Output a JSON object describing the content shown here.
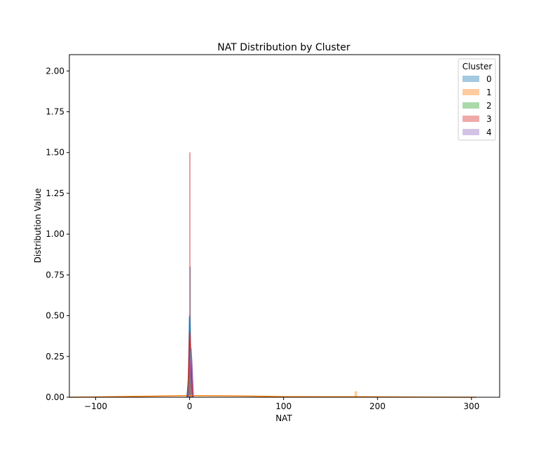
{
  "chart_data": {
    "type": "histogram-kde",
    "title": "NAT Distribution by Cluster",
    "xlabel": "NAT",
    "ylabel": "Distribution Value",
    "xlim": [
      -128,
      330
    ],
    "ylim": [
      0,
      2.1
    ],
    "xticks": [
      -100,
      0,
      100,
      200,
      300
    ],
    "xtick_labels": [
      "−100",
      "0",
      "100",
      "200",
      "300"
    ],
    "yticks": [
      0,
      0.25,
      0.5,
      0.75,
      1.0,
      1.25,
      1.5,
      1.75,
      2.0
    ],
    "ytick_labels": [
      "0.00",
      "0.25",
      "0.50",
      "0.75",
      "1.00",
      "1.25",
      "1.50",
      "1.75",
      "2.00"
    ],
    "grid": false,
    "legend": {
      "title": "Cluster",
      "position": "top-right"
    },
    "series": [
      {
        "name": "0",
        "color": "#1f77b4",
        "bars": [
          {
            "x0": 0.2,
            "x1": 0.8,
            "y": 0.8
          },
          {
            "x0": -0.6,
            "x1": 0.2,
            "y": 0.5
          }
        ],
        "kde": [
          [
            -3,
            0
          ],
          [
            -1.5,
            0.08
          ],
          [
            -0.5,
            0.35
          ],
          [
            0,
            0.49
          ],
          [
            0.5,
            0.42
          ],
          [
            1.5,
            0.15
          ],
          [
            3,
            0
          ]
        ]
      },
      {
        "name": "1",
        "color": "#ff7f0e",
        "bars": [
          {
            "x0": 176,
            "x1": 178,
            "y": 0.035
          },
          {
            "x0": -1,
            "x1": 1,
            "y": 0.01
          }
        ],
        "kde": [
          [
            -128,
            0.0
          ],
          [
            -100,
            0.002
          ],
          [
            -50,
            0.006
          ],
          [
            0,
            0.01
          ],
          [
            50,
            0.008
          ],
          [
            100,
            0.004
          ],
          [
            150,
            0.003
          ],
          [
            178,
            0.003
          ],
          [
            250,
            0.001
          ],
          [
            305,
            0.0
          ]
        ]
      },
      {
        "name": "2",
        "color": "#2ca02c",
        "bars": [
          {
            "x0": 0.6,
            "x1": 1.2,
            "y": 0.3
          }
        ],
        "kde": [
          [
            -2,
            0
          ],
          [
            -0.5,
            0.1
          ],
          [
            0.5,
            0.3
          ],
          [
            1.2,
            0.27
          ],
          [
            2.5,
            0.08
          ],
          [
            4,
            0
          ]
        ]
      },
      {
        "name": "3",
        "color": "#d62728",
        "bars": [
          {
            "x0": -0.2,
            "x1": 0.2,
            "y": 1.5
          },
          {
            "x0": 1.5,
            "x1": 2.5,
            "y": 0.23
          }
        ],
        "kde": [
          [
            -2.5,
            0
          ],
          [
            -1,
            0.15
          ],
          [
            0,
            0.4
          ],
          [
            1,
            0.3
          ],
          [
            2,
            0.12
          ],
          [
            3.5,
            0
          ]
        ]
      },
      {
        "name": "4",
        "color": "#9467bd",
        "bars": [
          {
            "x0": 1.0,
            "x1": 2.0,
            "y": 0.3
          }
        ],
        "kde": [
          [
            -1,
            0
          ],
          [
            0.5,
            0.15
          ],
          [
            1.5,
            0.3
          ],
          [
            2.5,
            0.2
          ],
          [
            4,
            0
          ]
        ]
      }
    ]
  }
}
